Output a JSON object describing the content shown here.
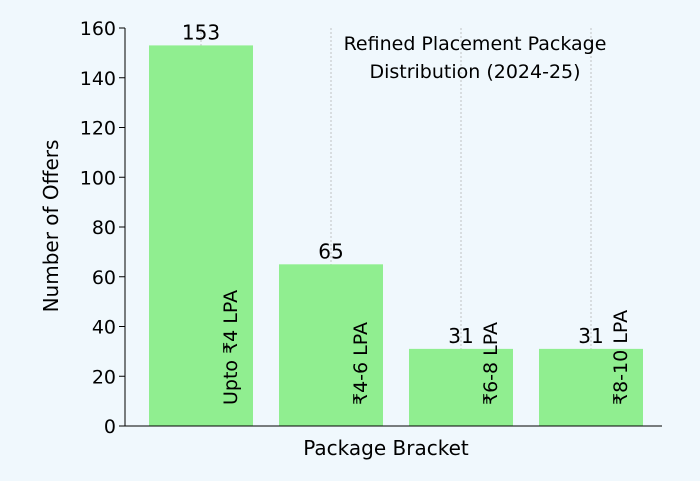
{
  "chart_data": {
    "type": "bar",
    "title_lines": [
      "Refined Placement Package",
      "Distribution (2024-25)"
    ],
    "xlabel": "Package Bracket",
    "ylabel": "Number of Offers",
    "categories": [
      "Upto ₹4 LPA",
      "₹4-6 LPA",
      "₹6-8 LPA",
      "₹8-10 LPA"
    ],
    "values": [
      153,
      65,
      31,
      31
    ],
    "value_labels": [
      "153",
      "65",
      "31",
      "31"
    ],
    "ylim": [
      0,
      160
    ],
    "yticks": [
      0,
      20,
      40,
      60,
      80,
      100,
      120,
      140,
      160
    ],
    "ytick_labels": [
      "0",
      "20",
      "40",
      "60",
      "80",
      "100",
      "120",
      "140",
      "160"
    ],
    "grid": true,
    "bar_color": "#90ee90",
    "background_color": "#f0f8fd"
  }
}
